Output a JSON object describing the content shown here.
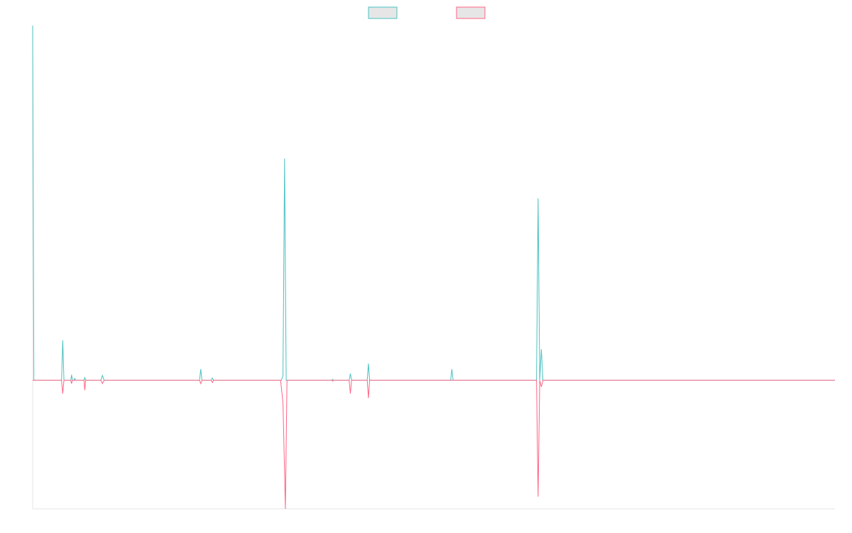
{
  "chart_data": {
    "type": "line",
    "title": "",
    "xlabel": "",
    "ylabel": "",
    "grid": false,
    "legend": "top-center",
    "x_range": [
      0,
      1000
    ],
    "y_range": [
      -0.58,
      1.6
    ],
    "series": [
      {
        "color": "#4bc0c0",
        "legend_fill": "#e6e6e6",
        "baseline": 0,
        "points": [
          [
            0,
            1.6
          ],
          [
            1.5,
            0
          ],
          [
            36,
            0
          ],
          [
            37.5,
            0.18
          ],
          [
            39,
            0
          ],
          [
            47.5,
            0
          ],
          [
            48.5,
            0.025
          ],
          [
            49.5,
            0
          ],
          [
            51.5,
            0
          ],
          [
            52.5,
            0.008
          ],
          [
            53.5,
            0
          ],
          [
            64,
            0
          ],
          [
            65,
            0.012
          ],
          [
            66,
            0
          ],
          [
            85,
            0
          ],
          [
            87,
            0.022
          ],
          [
            89,
            0
          ],
          [
            208,
            0
          ],
          [
            209.5,
            0.05
          ],
          [
            211,
            0
          ],
          [
            222.5,
            0
          ],
          [
            224,
            0.01
          ],
          [
            225.5,
            0
          ],
          [
            310,
            0
          ],
          [
            312,
            0.02
          ],
          [
            314,
            1.0
          ],
          [
            316,
            0
          ],
          [
            373,
            0
          ],
          [
            374,
            0.004
          ],
          [
            375,
            0
          ],
          [
            394.5,
            0
          ],
          [
            396,
            0.03
          ],
          [
            397.5,
            0
          ],
          [
            417,
            0
          ],
          [
            418.5,
            0.075
          ],
          [
            420,
            0
          ],
          [
            521,
            0
          ],
          [
            522.5,
            0.05
          ],
          [
            524,
            0
          ],
          [
            628,
            0
          ],
          [
            630,
            0.82
          ],
          [
            632,
            0
          ],
          [
            634,
            0.14
          ],
          [
            636,
            0
          ],
          [
            1000,
            0
          ]
        ]
      },
      {
        "color": "#ff6384",
        "legend_fill": "#e6e6e6",
        "baseline": 0,
        "points": [
          [
            0,
            0
          ],
          [
            36,
            0
          ],
          [
            37.5,
            -0.06
          ],
          [
            39,
            0
          ],
          [
            47.5,
            0
          ],
          [
            48.5,
            -0.015
          ],
          [
            49.5,
            0
          ],
          [
            64,
            0
          ],
          [
            65,
            -0.045
          ],
          [
            66,
            0
          ],
          [
            85,
            0
          ],
          [
            87,
            -0.015
          ],
          [
            89,
            0
          ],
          [
            208,
            0
          ],
          [
            209.5,
            -0.015
          ],
          [
            211,
            0
          ],
          [
            222.5,
            0
          ],
          [
            224,
            -0.01
          ],
          [
            225.5,
            0
          ],
          [
            309,
            0
          ],
          [
            312,
            -0.1
          ],
          [
            315,
            -0.58
          ],
          [
            317,
            0
          ],
          [
            373,
            0
          ],
          [
            374,
            -0.004
          ],
          [
            375,
            0
          ],
          [
            394.5,
            0
          ],
          [
            396,
            -0.06
          ],
          [
            397.5,
            0
          ],
          [
            417,
            0
          ],
          [
            418.5,
            -0.08
          ],
          [
            420,
            0
          ],
          [
            628,
            0
          ],
          [
            630,
            -0.525
          ],
          [
            632,
            0
          ],
          [
            634,
            -0.03
          ],
          [
            636,
            0
          ],
          [
            1000,
            0
          ]
        ]
      }
    ]
  }
}
